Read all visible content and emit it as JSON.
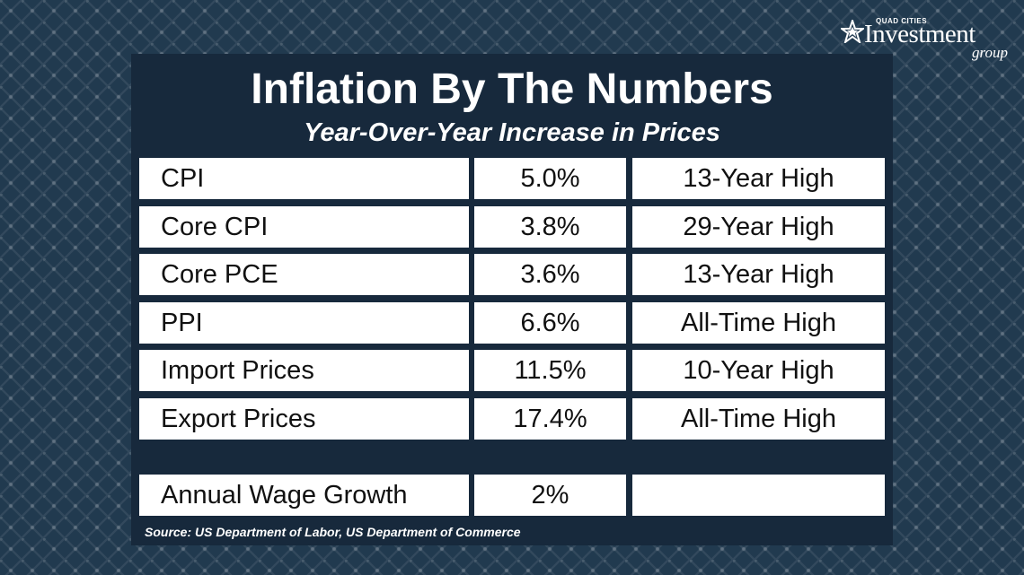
{
  "logo": {
    "top_text": "QUAD CITIES",
    "main_text": "Investment",
    "sub_text": "group",
    "icon": "star-icon"
  },
  "title": "Inflation By The Numbers",
  "subtitle": "Year-Over-Year Increase in Prices",
  "table": {
    "rows": [
      {
        "measure": "CPI",
        "value": "5.0%",
        "note": "13-Year High"
      },
      {
        "measure": "Core CPI",
        "value": "3.8%",
        "note": "29-Year High"
      },
      {
        "measure": "Core PCE",
        "value": "3.6%",
        "note": "13-Year High"
      },
      {
        "measure": "PPI",
        "value": "6.6%",
        "note": "All-Time High"
      },
      {
        "measure": "Import Prices",
        "value": "11.5%",
        "note": "10-Year High"
      },
      {
        "measure": "Export Prices",
        "value": "17.4%",
        "note": "All-Time High"
      }
    ],
    "wage_row": {
      "measure": "Annual Wage Growth",
      "value": "2%",
      "note": ""
    }
  },
  "source": "Source: US Department of Labor, US Department of Commerce",
  "colors": {
    "background": "#213a4f",
    "panel": "#17293c",
    "cell": "#ffffff",
    "text_light": "#ffffff",
    "text_dark": "#111111"
  }
}
